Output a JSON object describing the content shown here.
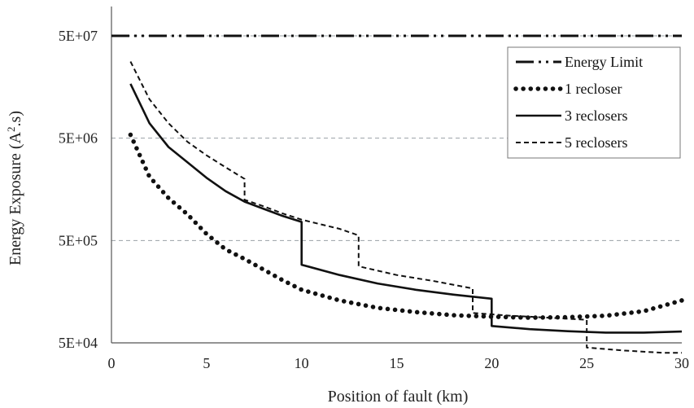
{
  "chart_data": {
    "type": "line",
    "title": "",
    "xlabel": "Position of  fault (km)",
    "ylabel": "Energy Exposure (A².s)",
    "ylabel_main": "Energy Exposure (A",
    "ylabel_sup": "2",
    "ylabel_end": ".s)",
    "xlim": [
      0,
      30
    ],
    "x_ticks": [
      0,
      5,
      10,
      15,
      20,
      25,
      30
    ],
    "y_scale": "log",
    "ylim": [
      50000,
      50000000
    ],
    "y_ticks": [
      50000,
      500000,
      5000000,
      50000000
    ],
    "y_tick_labels": [
      "5E+04",
      "5E+05",
      "5E+06",
      "5E+07"
    ],
    "grid": "horizontal dashed",
    "legend_position": "top-right",
    "series": [
      {
        "name": "Energy Limit",
        "style": "dash-dot-dot",
        "x": [
          0,
          30
        ],
        "y": [
          50000000,
          50000000
        ]
      },
      {
        "name": "1 recloser",
        "style": "dotted",
        "x": [
          1,
          2,
          3,
          4,
          5,
          6,
          7,
          8,
          9,
          10,
          12,
          14,
          16,
          18,
          20,
          22,
          24,
          26,
          28,
          30
        ],
        "y": [
          5400000,
          2100000,
          1300000,
          900000,
          580000,
          410000,
          330000,
          260000,
          205000,
          165000,
          130000,
          110000,
          100000,
          93000,
          90000,
          88000,
          89000,
          92000,
          102000,
          130000
        ]
      },
      {
        "name": "3 reclosers",
        "style": "solid",
        "x": [
          1,
          2,
          3,
          4,
          5,
          6,
          7,
          8,
          9,
          10,
          10,
          12,
          14,
          16,
          18,
          20,
          20,
          22,
          24,
          26,
          28,
          30
        ],
        "y": [
          17000000,
          7000000,
          4100000,
          2900000,
          2050000,
          1520000,
          1200000,
          1020000,
          870000,
          760000,
          290000,
          230000,
          190000,
          165000,
          148000,
          135000,
          73000,
          68000,
          65000,
          63000,
          63000,
          64500
        ]
      },
      {
        "name": "5 reclosers",
        "style": "dashed",
        "x": [
          1,
          2,
          3,
          4,
          5,
          6,
          7,
          7,
          8,
          9,
          10,
          11,
          12,
          13,
          13,
          15,
          17,
          19,
          19,
          21,
          23,
          25,
          25,
          27,
          29,
          30
        ],
        "y": [
          28000000,
          12000000,
          7000000,
          4600000,
          3400000,
          2600000,
          2000000,
          1250000,
          1080000,
          920000,
          800000,
          720000,
          650000,
          560000,
          280000,
          230000,
          200000,
          170000,
          98000,
          92000,
          88000,
          84000,
          45000,
          42000,
          40000,
          40000
        ]
      }
    ]
  }
}
